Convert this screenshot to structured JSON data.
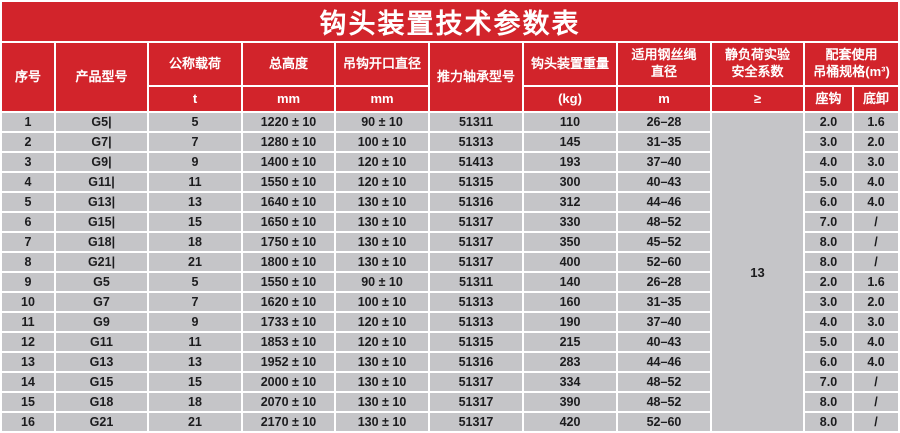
{
  "title": "钩头装置技术参数表",
  "colors": {
    "header_red": "#d2242b",
    "row_gray": "#c5c5c8",
    "separator_white": "#ffffff",
    "text_dark": "#1c1c1e",
    "title_text": "#ffffff"
  },
  "header": {
    "seq": {
      "label": "序号"
    },
    "model": {
      "label": "产品型号"
    },
    "load": {
      "label": "公称载荷",
      "unit": "t"
    },
    "height": {
      "label": "总高度",
      "unit": "mm"
    },
    "opening": {
      "label": "吊钩开口直径",
      "unit": "mm"
    },
    "bearing": {
      "label": "推力轴承型号"
    },
    "weight": {
      "label": "钩头装置重量",
      "unit": "(kg)"
    },
    "rope": {
      "label": "适用钢丝绳\n直径",
      "unit": "m"
    },
    "safety": {
      "label": "静负荷实验\n安全系数",
      "unit": "≥"
    },
    "bucket": {
      "label": "配套使用\n吊桶规格(m³)",
      "sub_left": "座钩",
      "sub_right": "底卸"
    }
  },
  "body": {
    "safety_merged_value": "13"
  },
  "rows": [
    [
      "1",
      "G5|",
      "5",
      "1220 ± 10",
      "90 ± 10",
      "51311",
      "110",
      "26–28",
      "2.0",
      "1.6"
    ],
    [
      "2",
      "G7|",
      "7",
      "1280 ± 10",
      "100 ± 10",
      "51313",
      "145",
      "31–35",
      "3.0",
      "2.0"
    ],
    [
      "3",
      "G9|",
      "9",
      "1400 ± 10",
      "120 ± 10",
      "51413",
      "193",
      "37–40",
      "4.0",
      "3.0"
    ],
    [
      "4",
      "G11|",
      "11",
      "1550 ± 10",
      "120 ± 10",
      "51315",
      "300",
      "40–43",
      "5.0",
      "4.0"
    ],
    [
      "5",
      "G13|",
      "13",
      "1640 ± 10",
      "130 ± 10",
      "51316",
      "312",
      "44–46",
      "6.0",
      "4.0"
    ],
    [
      "6",
      "G15|",
      "15",
      "1650 ± 10",
      "130 ± 10",
      "51317",
      "330",
      "48–52",
      "7.0",
      "/"
    ],
    [
      "7",
      "G18|",
      "18",
      "1750 ± 10",
      "130 ± 10",
      "51317",
      "350",
      "45–52",
      "8.0",
      "/"
    ],
    [
      "8",
      "G21|",
      "21",
      "1800 ± 10",
      "130 ± 10",
      "51317",
      "400",
      "52–60",
      "8.0",
      "/"
    ],
    [
      "9",
      "G5",
      "5",
      "1550 ± 10",
      "90 ± 10",
      "51311",
      "140",
      "26–28",
      "2.0",
      "1.6"
    ],
    [
      "10",
      "G7",
      "7",
      "1620 ± 10",
      "100 ± 10",
      "51313",
      "160",
      "31–35",
      "3.0",
      "2.0"
    ],
    [
      "11",
      "G9",
      "9",
      "1733 ± 10",
      "120 ± 10",
      "51313",
      "190",
      "37–40",
      "4.0",
      "3.0"
    ],
    [
      "12",
      "G11",
      "11",
      "1853 ± 10",
      "120 ± 10",
      "51315",
      "215",
      "40–43",
      "5.0",
      "4.0"
    ],
    [
      "13",
      "G13",
      "13",
      "1952 ± 10",
      "130 ± 10",
      "51316",
      "283",
      "44–46",
      "6.0",
      "4.0"
    ],
    [
      "14",
      "G15",
      "15",
      "2000 ± 10",
      "130 ± 10",
      "51317",
      "334",
      "48–52",
      "7.0",
      "/"
    ],
    [
      "15",
      "G18",
      "18",
      "2070 ± 10",
      "130 ± 10",
      "51317",
      "390",
      "48–52",
      "8.0",
      "/"
    ],
    [
      "16",
      "G21",
      "21",
      "2170 ± 10",
      "130 ± 10",
      "51317",
      "420",
      "52–60",
      "8.0",
      "/"
    ]
  ]
}
